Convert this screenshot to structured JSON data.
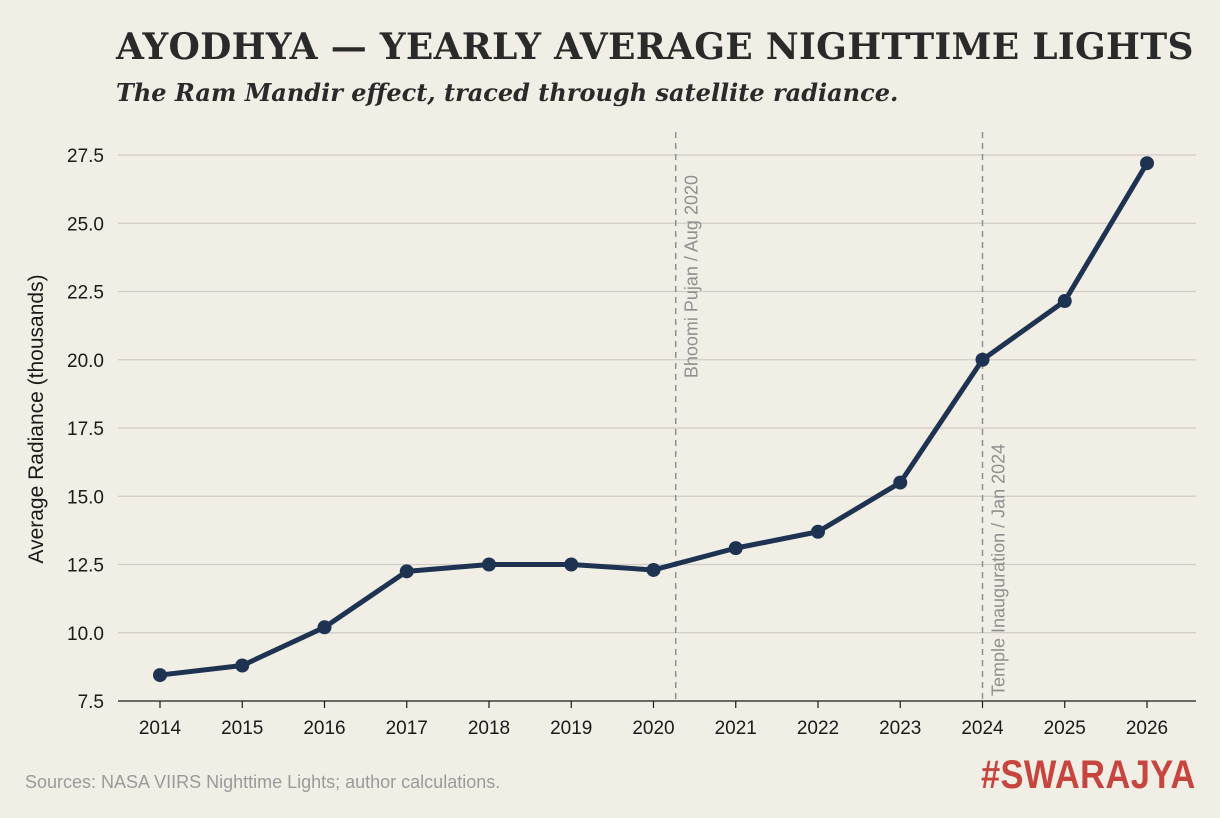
{
  "title": "AYODHYA — YEARLY AVERAGE NIGHTTIME LIGHTS",
  "subtitle": "The Ram Mandir effect, traced through satellite radiance.",
  "source": "Sources: NASA VIIRS Nighttime Lights; author calculations.",
  "brand": "#SWARAJYA",
  "colors": {
    "background": "#f1eee6",
    "line": "#1e3352",
    "grid": "#cfccc4",
    "brand": "#c6463f",
    "annotation": "#8f8f8f"
  },
  "chart_data": {
    "type": "line",
    "ylabel": "Average Radiance (thousands)",
    "xlabel": "",
    "ylim": [
      7.5,
      28.0
    ],
    "yticks": [
      "7.5",
      "10.0",
      "12.5",
      "15.0",
      "17.5",
      "20.0",
      "22.5",
      "25.0",
      "27.5"
    ],
    "x": [
      "2014",
      "2015",
      "2016",
      "2017",
      "2018",
      "2019",
      "2020",
      "2021",
      "2022",
      "2023",
      "2024",
      "2025",
      "2026"
    ],
    "series": [
      {
        "values": [
          8.45,
          8.8,
          10.2,
          12.25,
          12.5,
          12.5,
          12.3,
          13.1,
          13.7,
          15.5,
          20.0,
          22.15,
          27.2
        ]
      }
    ],
    "grid": "horizontal",
    "annotations": [
      {
        "x": 2020.27,
        "text": "Bhoomi Pujan / Aug 2020",
        "position": "top"
      },
      {
        "x": 2024.0,
        "text": "Temple Inauguration / Jan 2024",
        "position": "bottom"
      }
    ]
  }
}
